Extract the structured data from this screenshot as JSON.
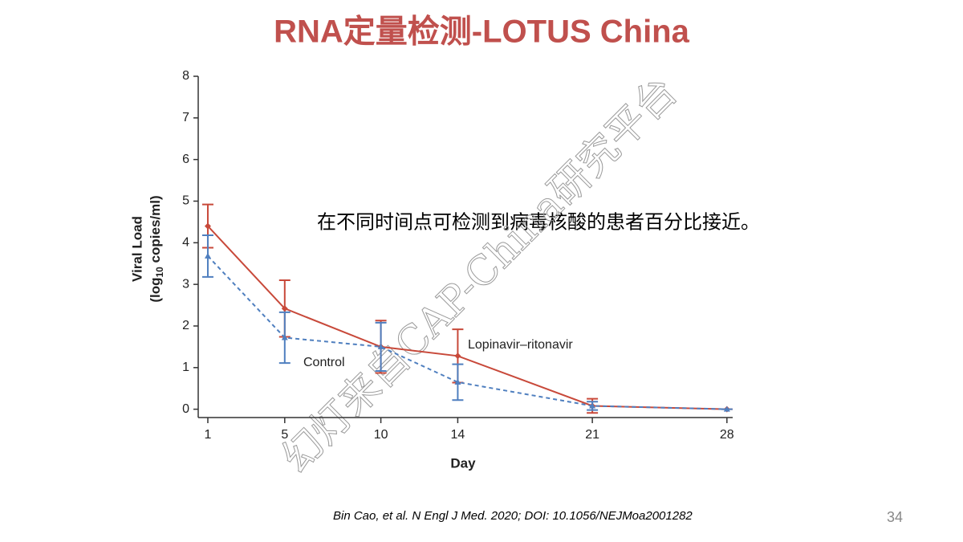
{
  "slide_title": "RNA定量检测-LOTUS China",
  "annotation": "在不同时间点可检测到病毒核酸的患者百分比接近。",
  "citation": "Bin Cao, et al. N Engl J Med. 2020; DOI: 10.1056/NEJMoa2001282",
  "page_number": "34",
  "watermark": "幻灯来自CAP-China研究平台",
  "chart_data": {
    "type": "line",
    "xlabel": "Day",
    "ylabel": "Viral Load",
    "ylabel_unit": {
      "before": "(log",
      "sub": "10",
      "after": " copies/ml)"
    },
    "x": [
      1,
      5,
      10,
      14,
      21,
      28
    ],
    "xlim": [
      0.5,
      28.3
    ],
    "xticks": [
      1,
      5,
      10,
      14,
      21,
      28
    ],
    "ylim": [
      -0.2,
      8
    ],
    "yticks": [
      0,
      1,
      2,
      3,
      4,
      5,
      6,
      7,
      8
    ],
    "series": [
      {
        "name": "Lopinavir–ritonavir",
        "color": "#c8493a",
        "dash": false,
        "values": [
          4.4,
          2.42,
          1.5,
          1.28,
          0.08,
          0.0
        ],
        "errors": [
          0.52,
          0.68,
          0.63,
          0.64,
          0.17,
          0.0
        ]
      },
      {
        "name": "Control",
        "color": "#4f7fbf",
        "dash": true,
        "values": [
          3.68,
          1.72,
          1.5,
          0.65,
          0.08,
          0.0
        ],
        "errors": [
          0.5,
          0.61,
          0.58,
          0.43,
          0.1,
          0.0
        ]
      }
    ]
  }
}
